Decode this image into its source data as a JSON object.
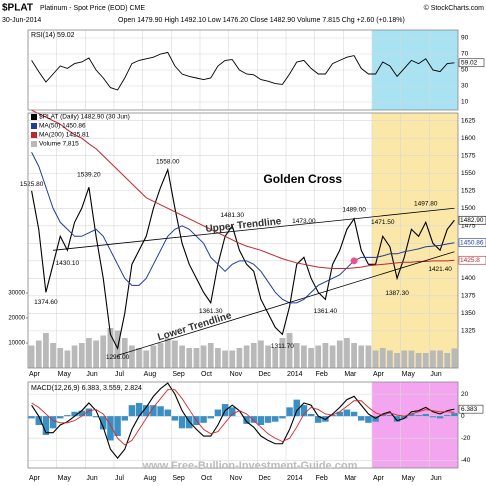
{
  "chart_data": {
    "type": "stock",
    "symbol": "$PLAT",
    "title": "Platinum - Spot Price (EOD) CME",
    "credit": "© StockCharts.com",
    "date": "30-Jun-2014",
    "quote": "Open 1479.90 High 1492.10 Low 1476.20 Close 1482.90 Volume 7.815 Chg +2.60 (+0.18%)",
    "watermark": "www.Free-Bullion-Investment-Guide.com",
    "months": [
      "Apr",
      "May",
      "Jun",
      "Jul",
      "Aug",
      "Sep",
      "Oct",
      "Nov",
      "Dec",
      "2014",
      "Feb",
      "Mar",
      "Apr",
      "May",
      "Jun"
    ],
    "rsi": {
      "label": "RSI(14) 59.02",
      "color": "#000000",
      "shade": "#a8e2f3",
      "ylim": [
        0,
        100
      ],
      "yticks": [
        90,
        70,
        50,
        30,
        10
      ],
      "values": [
        62,
        48,
        35,
        45,
        55,
        52,
        58,
        60,
        65,
        50,
        40,
        28,
        25,
        40,
        58,
        62,
        64,
        66,
        70,
        72,
        55,
        45,
        42,
        40,
        38,
        40,
        55,
        62,
        63,
        50,
        45,
        44,
        38,
        36,
        33,
        32,
        45,
        60,
        62,
        52,
        45,
        45,
        58,
        62,
        66,
        68,
        52,
        45,
        45,
        60,
        55,
        42,
        52,
        62,
        58,
        64,
        50,
        48,
        58,
        59.02
      ]
    },
    "price": {
      "shade": "#fbe7a8",
      "ylim": [
        1272,
        1636
      ],
      "yticks": [
        1625,
        1600,
        1575,
        1550,
        1525,
        1500,
        1475,
        1450,
        1425,
        1400,
        1375,
        1350,
        1325
      ],
      "series": [
        {
          "name": "$PLAT (Daily) 1482.90 (30 Jun)",
          "color": "#000000",
          "values": [
            1525,
            1470,
            1380,
            1420,
            1460,
            1440,
            1480,
            1500,
            1530,
            1460,
            1400,
            1320,
            1300,
            1350,
            1420,
            1440,
            1460,
            1500,
            1530,
            1555,
            1500,
            1450,
            1420,
            1400,
            1380,
            1365,
            1420,
            1460,
            1475,
            1440,
            1420,
            1410,
            1370,
            1350,
            1330,
            1320,
            1360,
            1420,
            1430,
            1400,
            1380,
            1370,
            1420,
            1440,
            1470,
            1485,
            1440,
            1420,
            1420,
            1460,
            1445,
            1400,
            1430,
            1470,
            1460,
            1480,
            1450,
            1440,
            1470,
            1482.9
          ]
        },
        {
          "name": "MA(50) 1450.86",
          "color": "#1f3d9c",
          "values": [
            1580,
            1560,
            1530,
            1500,
            1480,
            1470,
            1460,
            1460,
            1465,
            1470,
            1460,
            1440,
            1420,
            1400,
            1390,
            1390,
            1400,
            1420,
            1440,
            1460,
            1470,
            1475,
            1470,
            1460,
            1450,
            1430,
            1420,
            1410,
            1420,
            1425,
            1425,
            1420,
            1410,
            1395,
            1380,
            1370,
            1365,
            1365,
            1370,
            1380,
            1390,
            1395,
            1400,
            1405,
            1415,
            1425,
            1430,
            1430,
            1430,
            1432,
            1435,
            1435,
            1438,
            1440,
            1442,
            1445,
            1446,
            1447,
            1449,
            1450.86
          ]
        },
        {
          "name": "MA(200) 1425.81",
          "color": "#c0262d",
          "values": [
            1640,
            1635,
            1630,
            1625,
            1620,
            1612,
            1605,
            1600,
            1592,
            1585,
            1575,
            1565,
            1555,
            1545,
            1535,
            1525,
            1515,
            1510,
            1505,
            1500,
            1495,
            1490,
            1485,
            1480,
            1475,
            1470,
            1465,
            1460,
            1455,
            1450,
            1446,
            1443,
            1440,
            1436,
            1432,
            1428,
            1425,
            1422,
            1420,
            1418,
            1416,
            1415,
            1414,
            1414,
            1414,
            1415,
            1416,
            1418,
            1419,
            1420,
            1421,
            1422,
            1423,
            1423,
            1424,
            1424,
            1425,
            1425,
            1425,
            1425.81
          ]
        }
      ],
      "volume": {
        "name": "Volume 7,815",
        "color": "#b9b9b9",
        "ylim": [
          0,
          102000
        ],
        "yticks": [
          10000,
          20000,
          30000
        ],
        "values": [
          9000,
          11000,
          14000,
          10000,
          8000,
          7000,
          9000,
          10000,
          12000,
          11000,
          13000,
          16000,
          15000,
          12000,
          9000,
          8000,
          7000,
          9000,
          10000,
          12000,
          11000,
          9000,
          8000,
          8000,
          9000,
          10000,
          8000,
          7000,
          7000,
          8000,
          9000,
          10000,
          11000,
          9000,
          8000,
          12000,
          14000,
          10000,
          9000,
          8000,
          9000,
          10000,
          9000,
          11000,
          12000,
          10000,
          9000,
          9000,
          7000,
          8000,
          7000,
          6000,
          7000,
          7000,
          6000,
          6000,
          7000,
          7000,
          6000,
          7815
        ]
      },
      "annotations": [
        {
          "text": "1525.80",
          "x": 0,
          "y": 1525.8
        },
        {
          "text": "1374.60",
          "x": 2,
          "y": 1374.6
        },
        {
          "text": "1430.10",
          "x": 5,
          "y": 1430.1
        },
        {
          "text": "1539.20",
          "x": 8,
          "y": 1539.2
        },
        {
          "text": "1296.00",
          "x": 12,
          "y": 1296
        },
        {
          "text": "1558.00",
          "x": 19,
          "y": 1558
        },
        {
          "text": "1361.30",
          "x": 25,
          "y": 1361.3
        },
        {
          "text": "1481.30",
          "x": 28,
          "y": 1481.3
        },
        {
          "text": "1311.70",
          "x": 35,
          "y": 1311.7
        },
        {
          "text": "1473.00",
          "x": 38,
          "y": 1473
        },
        {
          "text": "1361.40",
          "x": 41,
          "y": 1361.4
        },
        {
          "text": "1489.00",
          "x": 45,
          "y": 1489
        },
        {
          "text": "1471.50",
          "x": 49,
          "y": 1471.5
        },
        {
          "text": "1387.30",
          "x": 51,
          "y": 1387.3
        },
        {
          "text": "1497.80",
          "x": 55,
          "y": 1497.8
        },
        {
          "text": "1421.40",
          "x": 57,
          "y": 1421.4
        }
      ],
      "trendlines": [
        {
          "name": "Upper Trendline",
          "color": "#000000",
          "x": [
            3,
            59
          ],
          "y": [
            1440,
            1500
          ]
        },
        {
          "name": "Lower Trendline",
          "color": "#000000",
          "x": [
            12,
            59
          ],
          "y": [
            1290,
            1438
          ]
        }
      ],
      "golden_cross": {
        "text": "Golden Cross",
        "color": "#f0508c",
        "x": 45,
        "y": 1425
      },
      "right_tags": [
        {
          "label": "1482.90",
          "value": 1482.9,
          "color": "#000000"
        },
        {
          "label": "1450.86",
          "value": 1450.86,
          "color": "#1f3d9c"
        },
        {
          "label": "1425.8",
          "value": 1425.81,
          "color": "#c0262d"
        }
      ]
    },
    "macd": {
      "label": "MACD(12,26,9) 6.383, 3.559, 2.824",
      "shade": "#f3a6ef",
      "ylim": [
        -47,
        31
      ],
      "yticks": [
        20,
        0,
        -20,
        -40
      ],
      "tag": 6.383,
      "series": [
        {
          "name": "MACD",
          "color": "#000000",
          "values": [
            10,
            0,
            -15,
            -15,
            -8,
            -5,
            0,
            5,
            12,
            5,
            -10,
            -30,
            -38,
            -30,
            -12,
            0,
            8,
            18,
            25,
            30,
            20,
            5,
            -5,
            -12,
            -18,
            -18,
            -8,
            5,
            10,
            5,
            -5,
            -10,
            -18,
            -22,
            -25,
            -25,
            -12,
            5,
            12,
            10,
            0,
            -3,
            2,
            8,
            15,
            18,
            10,
            2,
            -2,
            2,
            4,
            -4,
            -2,
            4,
            5,
            8,
            4,
            2,
            5,
            6.383
          ]
        },
        {
          "name": "Signal",
          "color": "#d42a2a",
          "values": [
            12,
            8,
            2,
            -4,
            -6,
            -6,
            -4,
            0,
            5,
            6,
            2,
            -8,
            -20,
            -26,
            -22,
            -12,
            -2,
            8,
            16,
            24,
            24,
            16,
            6,
            -4,
            -12,
            -16,
            -14,
            -6,
            2,
            5,
            2,
            -4,
            -10,
            -16,
            -20,
            -23,
            -20,
            -10,
            2,
            8,
            6,
            2,
            1,
            4,
            9,
            14,
            14,
            8,
            3,
            1,
            3,
            1,
            0,
            2,
            4,
            6,
            5,
            4,
            4,
            3.559
          ]
        },
        {
          "name": "Histogram",
          "color": "#3a8fc4",
          "values": [
            -2,
            -8,
            -17,
            -11,
            -2,
            1,
            4,
            5,
            7,
            -1,
            -12,
            -22,
            -18,
            -4,
            10,
            12,
            10,
            10,
            9,
            6,
            -4,
            -11,
            -11,
            -8,
            -6,
            -2,
            6,
            11,
            8,
            0,
            -7,
            -6,
            -8,
            -6,
            -5,
            -2,
            8,
            15,
            10,
            2,
            -6,
            -5,
            1,
            4,
            6,
            4,
            -4,
            -6,
            -5,
            1,
            1,
            -5,
            -2,
            2,
            1,
            2,
            -1,
            -2,
            1,
            2.824
          ]
        }
      ]
    }
  }
}
